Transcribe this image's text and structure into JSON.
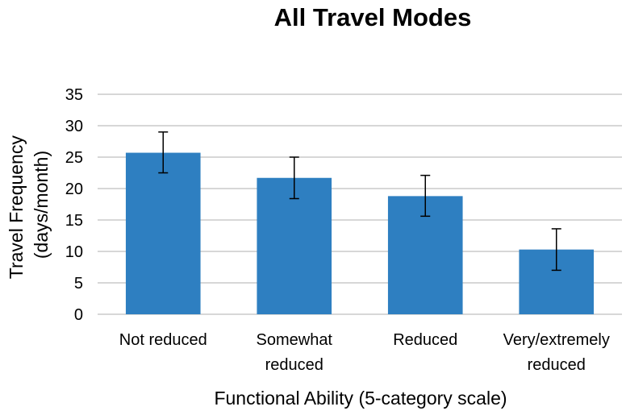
{
  "chart_data": {
    "type": "bar",
    "title": "All Travel Modes",
    "xlabel": "Functional Ability (5-category scale)",
    "ylabel_lines": [
      "Travel Frequency",
      "(days/month)"
    ],
    "categories": [
      [
        "Not reduced"
      ],
      [
        "Somewhat",
        "reduced"
      ],
      [
        "Reduced"
      ],
      [
        "Very/extremely",
        "reduced"
      ]
    ],
    "values": [
      25.7,
      21.7,
      18.8,
      10.3
    ],
    "error_low": [
      22.5,
      18.4,
      15.6,
      7.0
    ],
    "error_high": [
      29.0,
      25.0,
      22.1,
      13.6
    ],
    "ylim": [
      0,
      35
    ],
    "yticks": [
      0,
      5,
      10,
      15,
      20,
      25,
      30,
      35
    ],
    "grid": true,
    "bar_color": "#2e7fc1",
    "grid_color": "#bfbfbf",
    "error_color": "#000000"
  }
}
